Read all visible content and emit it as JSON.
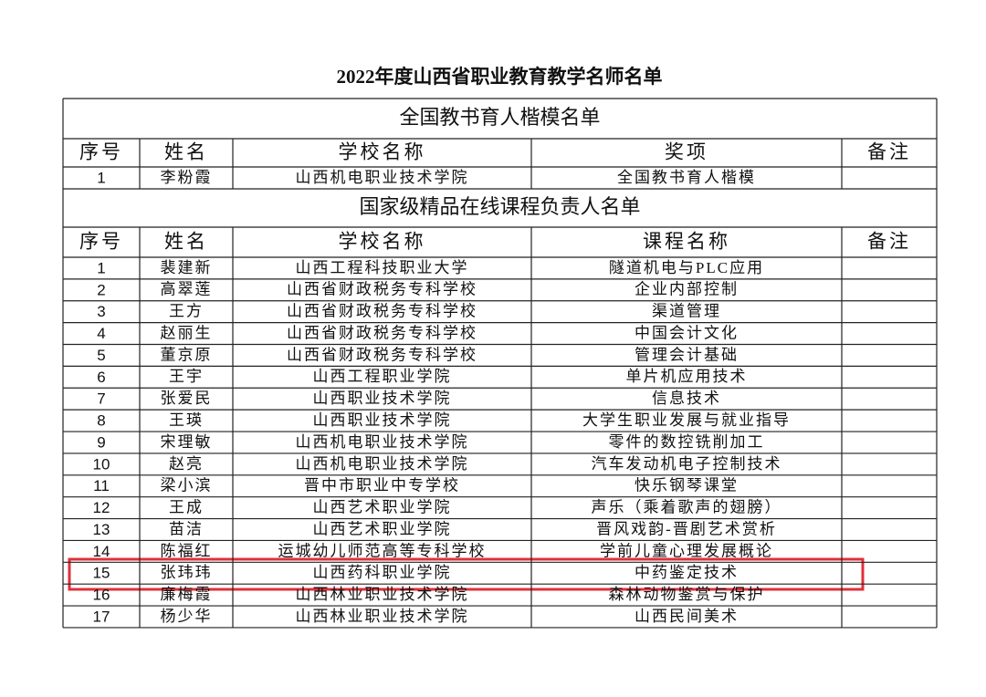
{
  "title": "2022年度山西省职业教育教学名师名单",
  "sections": [
    {
      "heading": "全国教书育人楷模名单",
      "columns": [
        "序号",
        "姓名",
        "学校名称",
        "奖项",
        "备注"
      ],
      "rows": [
        [
          "1",
          "李粉霞",
          "山西机电职业技术学院",
          "全国教书育人楷模"
        ]
      ]
    },
    {
      "heading": "国家级精品在线课程负责人名单",
      "columns": [
        "序号",
        "姓名",
        "学校名称",
        "课程名称",
        "备注"
      ],
      "rows": [
        [
          "1",
          "裴建新",
          "山西工程科技职业大学",
          "隧道机电与PLC应用"
        ],
        [
          "2",
          "高翠莲",
          "山西省财政税务专科学校",
          "企业内部控制"
        ],
        [
          "3",
          "王方",
          "山西省财政税务专科学校",
          "渠道管理"
        ],
        [
          "4",
          "赵丽生",
          "山西省财政税务专科学校",
          "中国会计文化"
        ],
        [
          "5",
          "董京原",
          "山西省财政税务专科学校",
          "管理会计基础"
        ],
        [
          "6",
          "王宇",
          "山西工程职业学院",
          "单片机应用技术"
        ],
        [
          "7",
          "张爱民",
          "山西职业技术学院",
          "信息技术"
        ],
        [
          "8",
          "王瑛",
          "山西职业技术学院",
          "大学生职业发展与就业指导"
        ],
        [
          "9",
          "宋理敏",
          "山西机电职业技术学院",
          "零件的数控铣削加工"
        ],
        [
          "10",
          "赵亮",
          "山西机电职业技术学院",
          "汽车发动机电子控制技术"
        ],
        [
          "11",
          "梁小滨",
          "晋中市职业中专学校",
          "快乐钢琴课堂"
        ],
        [
          "12",
          "王成",
          "山西艺术职业学院",
          "声乐（乘着歌声的翅膀）"
        ],
        [
          "13",
          "苗洁",
          "山西艺术职业学院",
          "晋风戏韵-晋剧艺术赏析"
        ],
        [
          "14",
          "陈福红",
          "运城幼儿师范高等专科学校",
          "学前儿童心理发展概论"
        ],
        [
          "15",
          "张玮玮",
          "山西药科职业学院",
          "中药鉴定技术"
        ],
        [
          "16",
          "廉梅霞",
          "山西林业职业技术学院",
          "森林动物鉴赏与保护"
        ],
        [
          "17",
          "杨少华",
          "山西林业职业技术学院",
          "山西民间美术"
        ]
      ]
    }
  ]
}
